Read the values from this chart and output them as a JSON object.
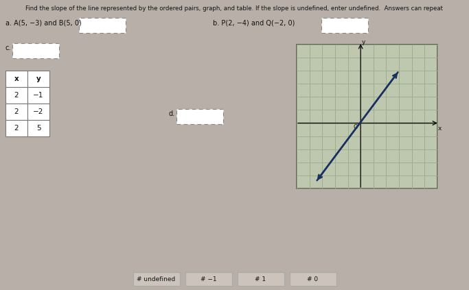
{
  "title": "Find the slope of the line represented by the ordered pairs, graph, and table. If the slope is undefined, enter undefined.  Answers can repeat",
  "bg_color": "#b8b0a8",
  "part_a_text": "a. A(5, −3) and B(5, 0)",
  "part_b_text": "b. P(2, −4) and Q(−2, 0)",
  "part_c_label": "c.",
  "part_d_label": "d.",
  "table_headers": [
    "x",
    "y"
  ],
  "table_rows": [
    [
      "2",
      "−1"
    ],
    [
      "2",
      "−2"
    ],
    [
      "2",
      "5"
    ]
  ],
  "answer_boxes": [
    "# undefined",
    "# −1",
    "# 1",
    "# 0"
  ],
  "graph_grid_color": "#9aaa8a",
  "graph_line_color": "#1a3060",
  "answer_box_color": "#ccc4bc",
  "dashed_box_color": "#888880",
  "text_color": "#111111",
  "graph_bg": "#bec8ae",
  "graph_border": "#555550"
}
